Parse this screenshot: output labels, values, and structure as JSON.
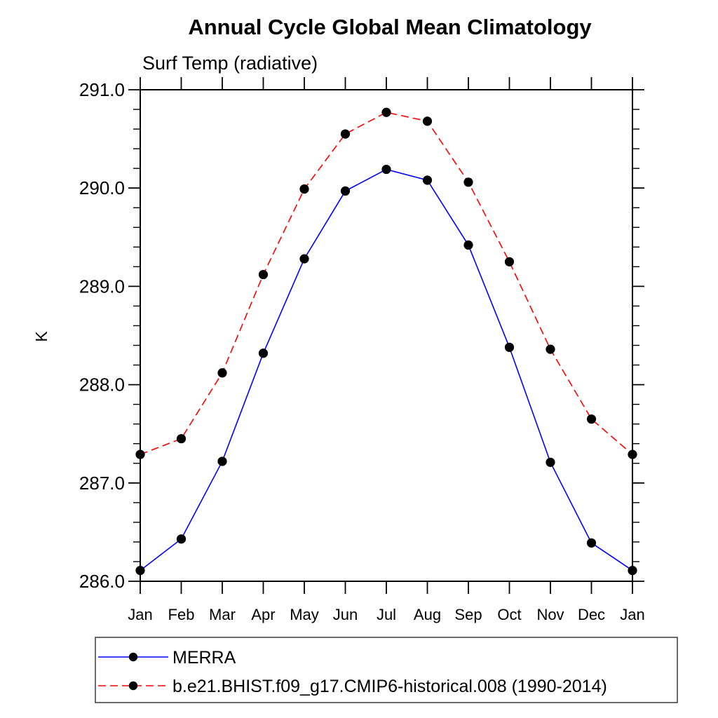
{
  "page": {
    "background": "#ffffff"
  },
  "chart_data": {
    "type": "line",
    "title": "Annual Cycle Global Mean Climatology",
    "subtitle": "Surf Temp (radiative)",
    "ylabel": "K",
    "xlabel": "",
    "x_tick_labels": [
      "Jan",
      "Feb",
      "Mar",
      "Apr",
      "May",
      "Jun",
      "Jul",
      "Aug",
      "Sep",
      "Oct",
      "Nov",
      "Dec",
      "Jan"
    ],
    "ylim": [
      286.0,
      291.0
    ],
    "y_major_ticks": [
      286.0,
      287.0,
      288.0,
      289.0,
      290.0,
      291.0
    ],
    "y_tick_labels": [
      "286.0",
      "287.0",
      "288.0",
      "289.0",
      "290.0",
      "291.0"
    ],
    "y_minor_step": 0.2,
    "grid": false,
    "legend_position": "bottom-left",
    "axis_color": "#000000",
    "marker": "filled-circle",
    "marker_color": "#000000",
    "series": [
      {
        "name": "MERRA",
        "color": "#0000ff",
        "line_style": "solid",
        "values": [
          286.11,
          286.43,
          287.22,
          288.32,
          289.28,
          289.97,
          290.19,
          290.08,
          289.42,
          288.38,
          287.21,
          286.39,
          286.11
        ]
      },
      {
        "name": "b.e21.BHIST.f09_g17.CMIP6-historical.008 (1990-2014)",
        "color": "#ff0000",
        "line_style": "dashed",
        "values": [
          287.29,
          287.45,
          288.12,
          289.12,
          289.99,
          290.55,
          290.77,
          290.68,
          290.06,
          289.25,
          288.36,
          287.65,
          287.29
        ]
      }
    ]
  }
}
